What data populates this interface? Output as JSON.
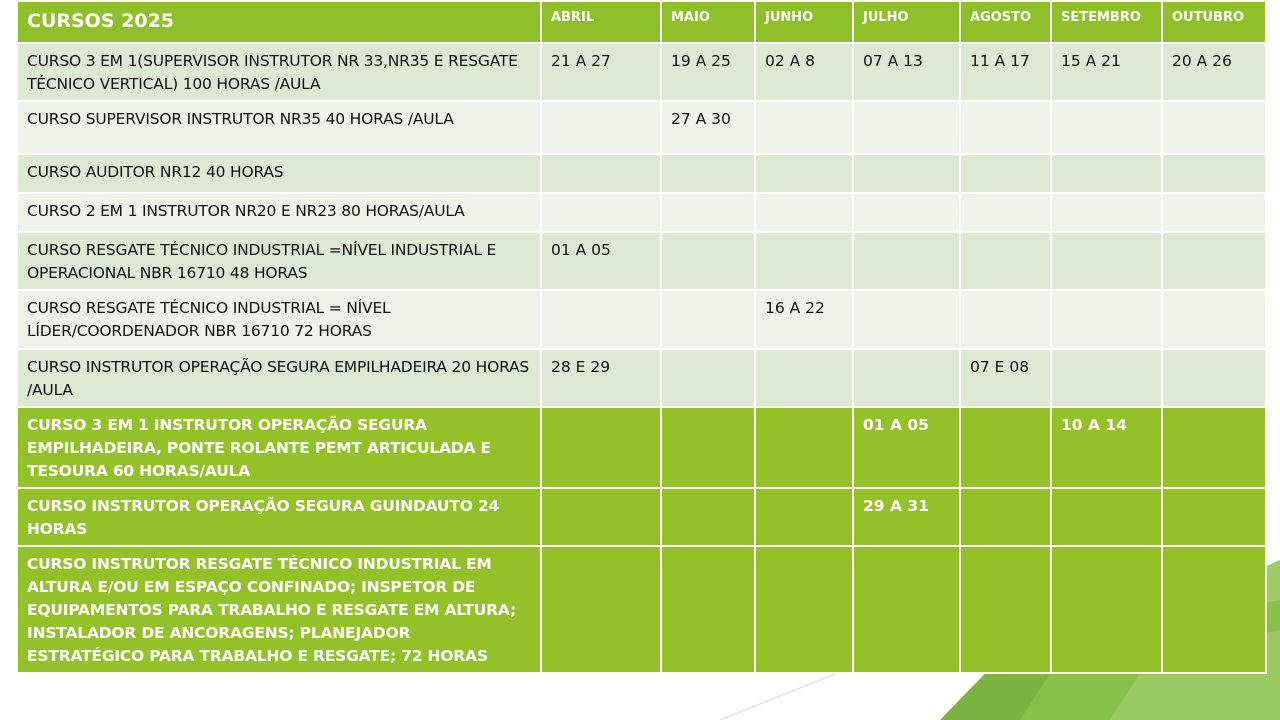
{
  "table": {
    "title": "CURSOS 2025",
    "months": [
      "ABRIL",
      "MAIO",
      "JUNHO",
      "JULHO",
      "AGOSTO",
      "SETEMBRO",
      "OUTUBRO"
    ],
    "rows": [
      {
        "course": "CURSO 3 EM 1(SUPERVISOR INSTRUTOR NR 33,NR35 E RESGATE TÉCNICO VERTICAL) 100 HORAS /AULA",
        "dates": [
          "21 A 27",
          "19 A 25",
          "02 A 8",
          "07 A 13",
          "11 A 17",
          "15 A 21",
          "20 A 26"
        ]
      },
      {
        "course": "CURSO SUPERVISOR INSTRUTOR NR35 40 HORAS /AULA",
        "dates": [
          "",
          "27 A 30",
          "",
          "",
          "",
          "",
          ""
        ]
      },
      {
        "course": "CURSO AUDITOR NR12 40 HORAS",
        "dates": [
          "",
          "",
          "",
          "",
          "",
          "",
          ""
        ]
      },
      {
        "course": "CURSO 2 EM 1 INSTRUTOR NR20 E NR23 80 HORAS/AULA",
        "dates": [
          "",
          "",
          "",
          "",
          "",
          "",
          ""
        ]
      },
      {
        "course": "CURSO RESGATE TÉCNICO INDUSTRIAL =NÍVEL INDUSTRIAL E OPERACIONAL NBR 16710 48 HORAS",
        "dates": [
          "01 A 05",
          "",
          "",
          "",
          "",
          "",
          ""
        ]
      },
      {
        "course": "CURSO RESGATE TÉCNICO INDUSTRIAL = NÍVEL LÍDER/COORDENADOR NBR 16710  72 HORAS",
        "dates": [
          "",
          "",
          "16 A 22",
          "",
          "",
          "",
          ""
        ]
      },
      {
        "course": "CURSO INSTRUTOR OPERAÇÃO SEGURA EMPILHADEIRA 20 HORAS /AULA",
        "dates": [
          "28 E 29",
          "",
          "",
          "",
          "07 E 08",
          "",
          ""
        ]
      },
      {
        "course": "CURSO 3 EM 1 INSTRUTOR OPERAÇÃO SEGURA EMPILHADEIRA, PONTE ROLANTE PEMT ARTICULADA E TESOURA 60 HORAS/AULA",
        "dates": [
          "",
          "",
          "",
          "01 A 05",
          "",
          "10 A 14",
          ""
        ]
      },
      {
        "course": "CURSO INSTRUTOR OPERAÇÃO SEGURA GUINDAUTO  24 HORAS",
        "dates": [
          "",
          "",
          "",
          "29 A 31",
          "",
          "",
          ""
        ]
      },
      {
        "course": "CURSO INSTRUTOR RESGATE TÉCNICO INDUSTRIAL EM ALTURA E/OU EM ESPAÇO CONFINADO;  INSPETOR DE EQUIPAMENTOS PARA TRABALHO E RESGATE EM ALTURA; INSTALADOR DE ANCORAGENS;  PLANEJADOR ESTRATÉGICO PARA TRABALHO E RESGATE; 72 HORAS",
        "dates": [
          "",
          "",
          "",
          "",
          "",
          "",
          ""
        ]
      }
    ]
  },
  "colors": {
    "header_green": "#8fc029",
    "dark_row_green": "#92c227",
    "light_row_a": "#dde9d3",
    "light_row_b": "#edf3e8"
  }
}
